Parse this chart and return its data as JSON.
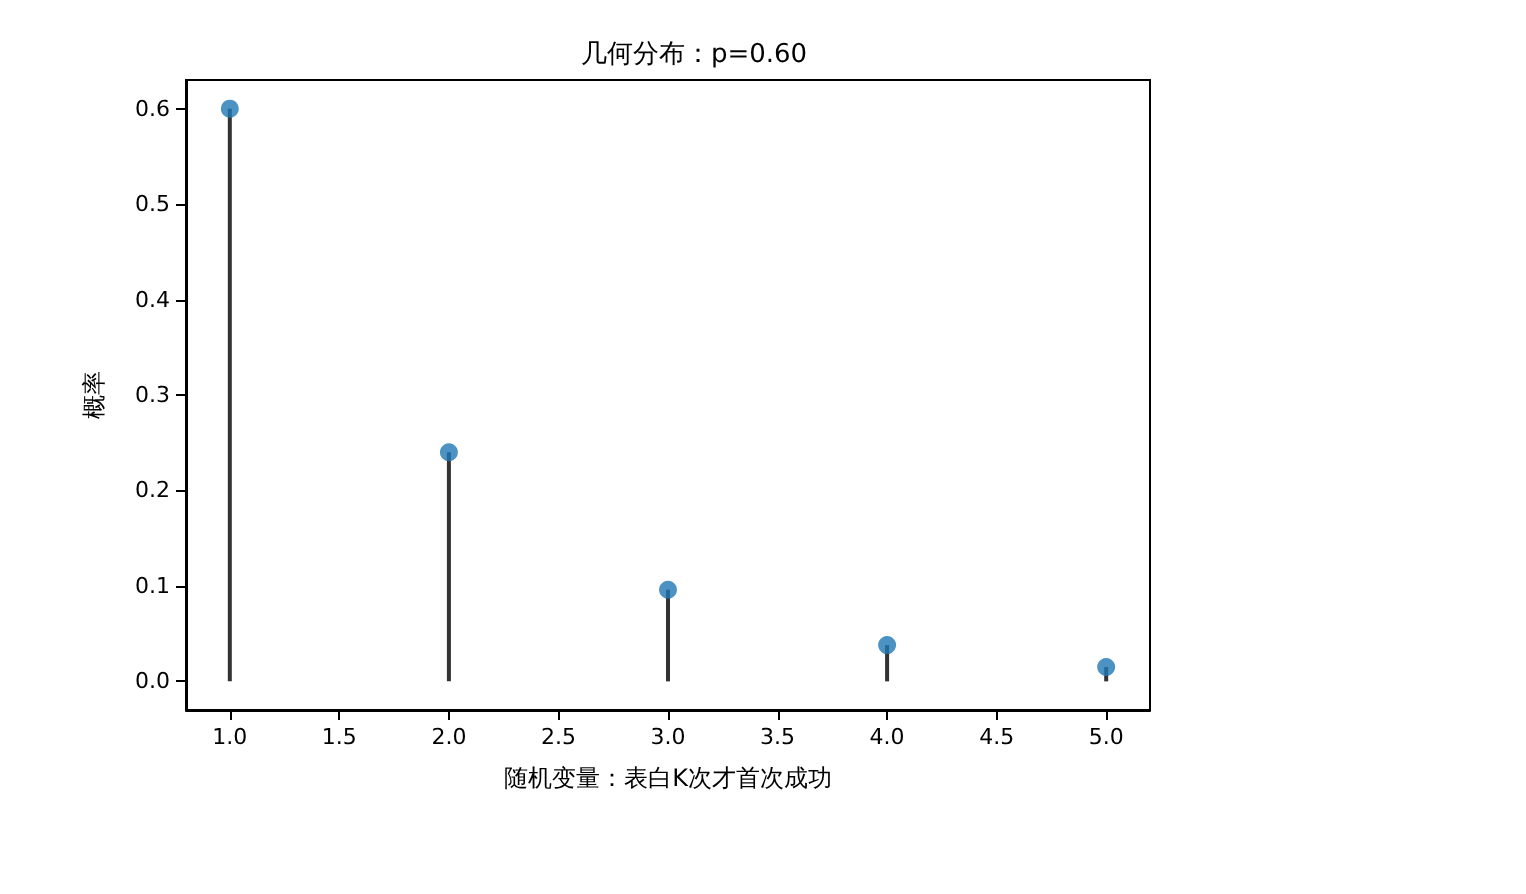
{
  "chart_data": {
    "type": "lollipop",
    "title": "几何分布：p=0.60",
    "xlabel": "随机变量：表白K次才首次成功",
    "ylabel": "概率",
    "x": [
      1,
      2,
      3,
      4,
      5
    ],
    "series": [
      {
        "color": "#1f77b4",
        "values": [
          0.6,
          0.24,
          0.096,
          0.038,
          0.015
        ]
      }
    ],
    "xlim": [
      0.8,
      5.2
    ],
    "xticks": [
      {
        "value": 1,
        "label": "1.0"
      },
      {
        "value": 1.5,
        "label": "1.5"
      },
      {
        "value": 2,
        "label": "2.0"
      },
      {
        "value": 2.5,
        "label": "2.5"
      },
      {
        "value": 3,
        "label": "3.0"
      },
      {
        "value": 3.5,
        "label": "3.5"
      },
      {
        "value": 4,
        "label": "4.0"
      },
      {
        "value": 4.5,
        "label": "4.5"
      },
      {
        "value": 5,
        "label": "5.0"
      }
    ],
    "ylim": [
      -0.03,
      0.63
    ],
    "yticks": [
      {
        "value": 0,
        "label": "0.0"
      },
      {
        "value": 0.1,
        "label": "0.1"
      },
      {
        "value": 0.2,
        "label": "0.2"
      },
      {
        "value": 0.3,
        "label": "0.3"
      },
      {
        "value": 0.4,
        "label": "0.4"
      },
      {
        "value": 0.5,
        "label": "0.5"
      },
      {
        "value": 0.6,
        "label": "0.6"
      }
    ],
    "marker": "circle"
  }
}
